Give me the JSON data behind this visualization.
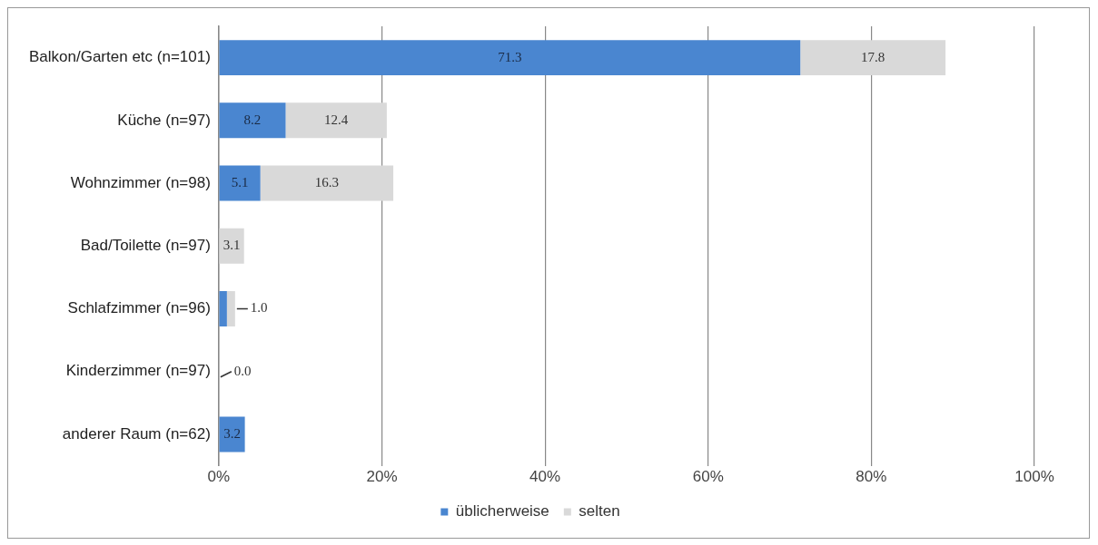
{
  "chart_data": {
    "type": "bar",
    "orientation": "horizontal",
    "stacked": true,
    "categories": [
      "Balkon/Garten etc (n=101)",
      "Küche (n=97)",
      "Wohnzimmer (n=98)",
      "Bad/Toilette (n=97)",
      "Schlafzimmer (n=96)",
      "Kinderzimmer (n=97)",
      "anderer Raum (n=62)"
    ],
    "series": [
      {
        "name": "üblicherweise",
        "color": "#4a86d0",
        "values": [
          71.3,
          8.2,
          5.1,
          0,
          1.0,
          0,
          3.2
        ],
        "value_labels": [
          "71.3",
          "8.2",
          "5.1",
          null,
          null,
          null,
          "3.2"
        ]
      },
      {
        "name": "selten",
        "color": "#d9d9d9",
        "values": [
          17.8,
          12.4,
          16.3,
          3.1,
          1.0,
          0.0,
          0
        ],
        "value_labels": [
          "17.8",
          "12.4",
          "16.3",
          "3.1",
          "1.0",
          "0.0",
          null
        ]
      }
    ],
    "xlim": [
      0,
      100
    ],
    "xticks": [
      {
        "value": 0,
        "label": "0%"
      },
      {
        "value": 20,
        "label": "20%"
      },
      {
        "value": 40,
        "label": "40%"
      },
      {
        "value": 60,
        "label": "60%"
      },
      {
        "value": 80,
        "label": "80%"
      },
      {
        "value": 100,
        "label": "100%"
      }
    ],
    "grid": "x",
    "legend": "bottom"
  }
}
